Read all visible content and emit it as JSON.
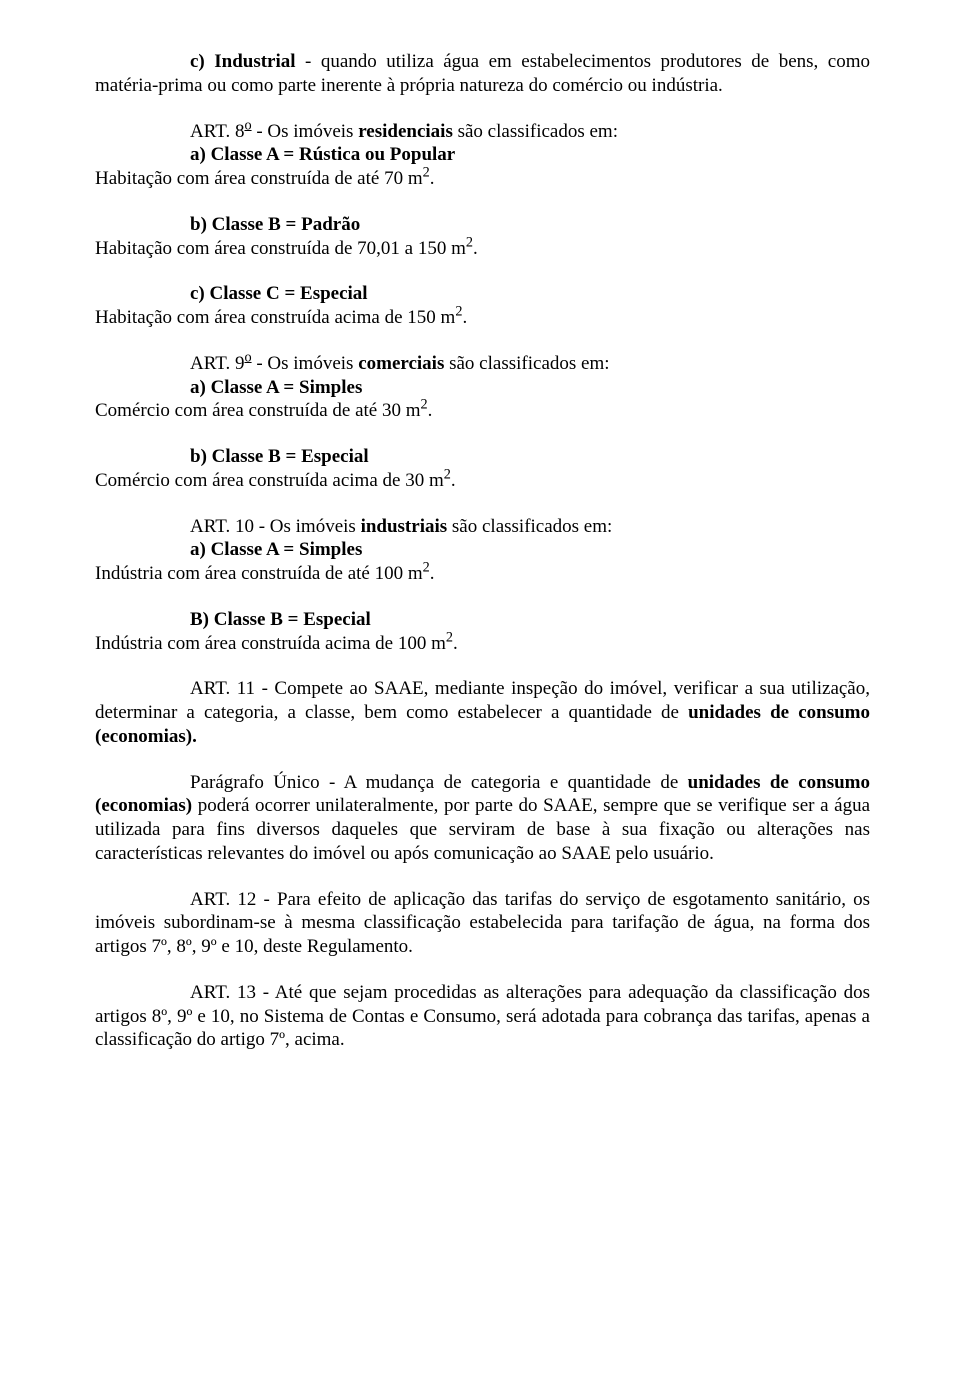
{
  "p1": {
    "lead_bold": "c) Industrial",
    "rest": " - quando utiliza água em estabelecimentos produtores de bens, como matéria-prima ou como parte inerente à própria natureza do comércio ou indústria."
  },
  "art8": {
    "line1_a": "ART. 8",
    "line1_sup_u": "o",
    "line1_b": " - Os imóveis ",
    "line1_bold": "residenciais",
    "line1_c": " são classificados em:",
    "item_a_bold": "a) Classe A = Rústica ou Popular",
    "item_a_desc_a": "Habitação com área construída de até 70 m",
    "item_a_desc_sup": "2",
    "item_a_desc_b": ".",
    "item_b_bold": "b) Classe B = Padrão",
    "item_b_desc_a": "Habitação com área construída de 70,01 a 150 m",
    "item_b_desc_sup": "2",
    "item_b_desc_b": ".",
    "item_c_bold": "c) Classe C = Especial",
    "item_c_desc_a": "Habitação com área construída acima de 150 m",
    "item_c_desc_sup": "2",
    "item_c_desc_b": "."
  },
  "art9": {
    "line1_a": "ART. 9",
    "line1_sup_u": "o",
    "line1_b": " - Os imóveis ",
    "line1_bold": "comerciais",
    "line1_c": " são classificados em:",
    "item_a_bold": "a) Classe A = Simples",
    "item_a_desc_a": "Comércio com área construída de até 30 m",
    "item_a_desc_sup": "2",
    "item_a_desc_b": ".",
    "item_b_bold": "b) Classe B = Especial",
    "item_b_desc_a": "Comércio com área construída acima de 30 m",
    "item_b_desc_sup": "2",
    "item_b_desc_b": "."
  },
  "art10": {
    "line1_a": "ART. 10 - Os imóveis ",
    "line1_bold": "industriais",
    "line1_c": " são classificados em:",
    "item_a_bold": "a) Classe A = Simples",
    "item_a_desc_a": "Indústria com área construída de até 100 m",
    "item_a_desc_sup": "2",
    "item_a_desc_b": ".",
    "item_b_bold": "B) Classe B = Especial",
    "item_b_desc_a": "Indústria com área construída acima de 100 m",
    "item_b_desc_sup": "2",
    "item_b_desc_b": "."
  },
  "art11": {
    "a": "ART. 11 - Compete ao SAAE, mediante inspeção do imóvel, verificar a sua utilização, determinar a categoria, a classe, bem como estabelecer a quantidade de ",
    "bold": "unidades de consumo (economias)."
  },
  "par_unico": {
    "a": "Parágrafo Único - A mudança de categoria e quantidade de ",
    "bold": "unidades de consumo (economias)",
    "b": " poderá ocorrer unilateralmente, por parte do SAAE, sempre que se verifique ser a água utilizada para fins diversos daqueles que serviram de base à sua fixação ou alterações nas características relevantes do imóvel ou após comunicação ao SAAE pelo usuário."
  },
  "art12": {
    "text": "ART. 12 - Para efeito de aplicação das tarifas do serviço de esgotamento sanitário, os imóveis subordinam-se à mesma classificação estabelecida para tarifação de água, na forma dos artigos 7º, 8º, 9º e 10, deste Regulamento."
  },
  "art13": {
    "text": "ART. 13 - Até que sejam procedidas as alterações para adequação da classificação dos artigos 8º, 9º e 10, no Sistema de Contas e Consumo, será adotada para cobrança das tarifas, apenas a classificação do artigo 7º, acima."
  }
}
